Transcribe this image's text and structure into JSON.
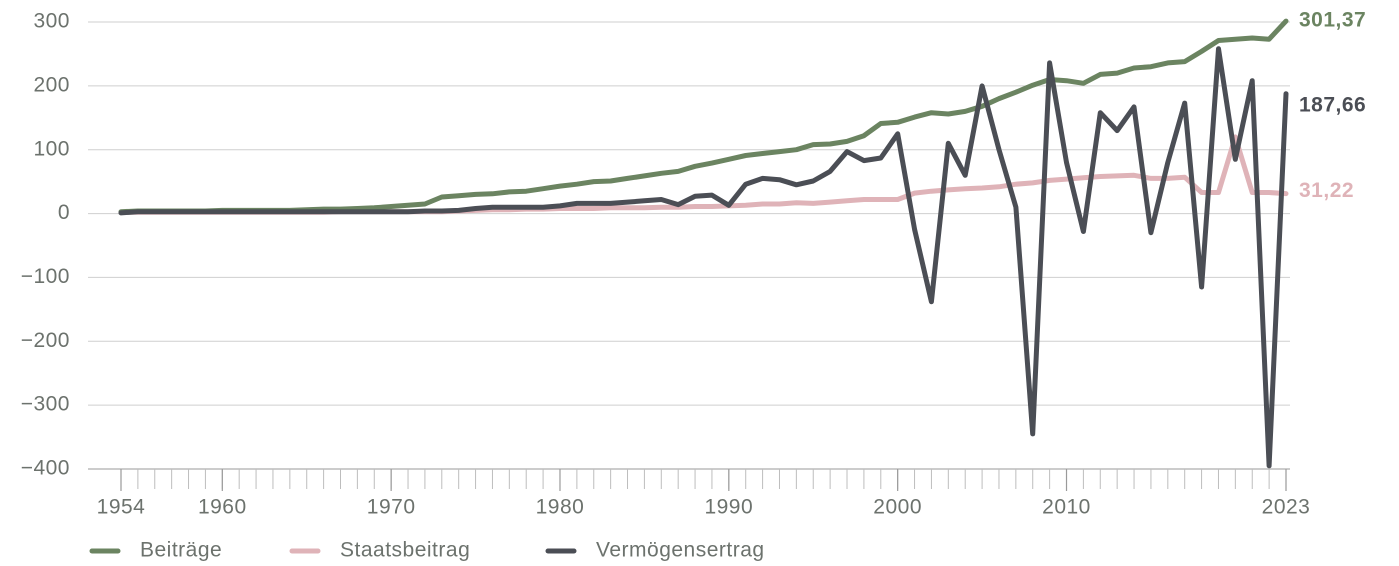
{
  "chart_data": {
    "type": "line",
    "x": [
      1954,
      1955,
      1956,
      1957,
      1958,
      1959,
      1960,
      1961,
      1962,
      1963,
      1964,
      1965,
      1966,
      1967,
      1968,
      1969,
      1970,
      1971,
      1972,
      1973,
      1974,
      1975,
      1976,
      1977,
      1978,
      1979,
      1980,
      1981,
      1982,
      1983,
      1984,
      1985,
      1986,
      1987,
      1988,
      1989,
      1990,
      1991,
      1992,
      1993,
      1994,
      1995,
      1996,
      1997,
      1998,
      1999,
      2000,
      2001,
      2002,
      2003,
      2004,
      2005,
      2006,
      2007,
      2008,
      2009,
      2010,
      2011,
      2012,
      2013,
      2014,
      2015,
      2016,
      2017,
      2018,
      2019,
      2020,
      2021,
      2022,
      2023
    ],
    "series": [
      {
        "name": "Beiträge",
        "color": "#6b8461",
        "values": [
          3,
          4,
          4,
          4,
          4,
          4,
          5,
          5,
          5,
          5,
          5,
          6,
          7,
          7,
          8,
          9,
          11,
          13,
          15,
          26,
          28,
          30,
          31,
          34,
          35,
          39,
          43,
          46,
          50,
          51,
          55,
          59,
          63,
          66,
          74,
          79,
          85,
          91,
          94,
          97,
          100,
          108,
          109,
          113,
          122,
          141,
          143,
          151,
          158,
          156,
          160,
          168,
          180,
          190,
          201,
          210,
          208,
          204,
          218,
          220,
          228,
          230,
          236,
          238,
          254,
          271,
          273,
          275,
          273,
          301.37
        ],
        "value_labels": [
          null,
          null,
          null,
          null,
          null,
          null,
          null,
          null,
          null,
          null,
          null,
          null,
          null,
          null,
          null,
          null,
          null,
          null,
          null,
          null,
          null,
          null,
          null,
          null,
          null,
          null,
          null,
          null,
          null,
          null,
          null,
          null,
          null,
          null,
          null,
          null,
          null,
          null,
          null,
          null,
          null,
          null,
          null,
          null,
          null,
          null,
          null,
          null,
          null,
          null,
          null,
          null,
          null,
          null,
          null,
          null,
          null,
          null,
          null,
          null,
          null,
          null,
          null,
          null,
          null,
          null,
          null,
          null,
          null,
          "301,37"
        ]
      },
      {
        "name": "Staatsbeitrag",
        "color": "#dfb3b8",
        "values": [
          2,
          2,
          2,
          2,
          2,
          2,
          2,
          2,
          2,
          2,
          2,
          2,
          2,
          3,
          3,
          3,
          3,
          3,
          3,
          3,
          4,
          5,
          6,
          6,
          7,
          7,
          8,
          8,
          8,
          9,
          9,
          9,
          10,
          10,
          11,
          11,
          12,
          13,
          15,
          15,
          17,
          16,
          18,
          20,
          22,
          22,
          22,
          32,
          35,
          37,
          39,
          40,
          42,
          46,
          48,
          52,
          54,
          56,
          58,
          59,
          60,
          55,
          55,
          57,
          33,
          33,
          120,
          33,
          33,
          31.22
        ],
        "value_labels": [
          null,
          null,
          null,
          null,
          null,
          null,
          null,
          null,
          null,
          null,
          null,
          null,
          null,
          null,
          null,
          null,
          null,
          null,
          null,
          null,
          null,
          null,
          null,
          null,
          null,
          null,
          null,
          null,
          null,
          null,
          null,
          null,
          null,
          null,
          null,
          null,
          null,
          null,
          null,
          null,
          null,
          null,
          null,
          null,
          null,
          null,
          null,
          null,
          null,
          null,
          null,
          null,
          null,
          null,
          null,
          null,
          null,
          null,
          null,
          null,
          null,
          null,
          null,
          null,
          null,
          null,
          null,
          null,
          null,
          "31,22"
        ]
      },
      {
        "name": "Vermögensertrag",
        "color": "#4b4e55",
        "values": [
          1,
          3,
          3,
          3,
          3,
          3,
          3,
          3,
          3,
          3,
          3,
          3,
          3,
          3,
          3,
          3,
          3,
          3,
          4,
          4,
          5,
          8,
          10,
          10,
          10,
          10,
          12,
          16,
          16,
          16,
          18,
          20,
          22,
          14,
          27,
          29,
          13,
          46,
          55,
          53,
          45,
          51,
          66,
          97,
          83,
          87,
          125,
          -25,
          -138,
          110,
          60,
          200,
          100,
          10,
          -345,
          236,
          80,
          -28,
          158,
          130,
          167,
          -30,
          80,
          173,
          -115,
          258,
          85,
          208,
          -395,
          187.66
        ],
        "value_labels": [
          null,
          null,
          null,
          null,
          null,
          null,
          null,
          null,
          null,
          null,
          null,
          null,
          null,
          null,
          null,
          null,
          null,
          null,
          null,
          null,
          null,
          null,
          null,
          null,
          null,
          null,
          null,
          null,
          null,
          null,
          null,
          null,
          null,
          null,
          null,
          null,
          null,
          null,
          null,
          null,
          null,
          null,
          null,
          null,
          null,
          null,
          null,
          null,
          null,
          null,
          null,
          null,
          null,
          null,
          null,
          null,
          null,
          null,
          null,
          null,
          null,
          null,
          null,
          null,
          null,
          null,
          null,
          null,
          null,
          "187,66"
        ]
      }
    ],
    "xlim": [
      1954,
      2023
    ],
    "xticks": [
      1954,
      1960,
      1970,
      1980,
      1990,
      2000,
      2010,
      2023
    ],
    "ylim": [
      -400,
      300
    ],
    "yticks": [
      {
        "value": -400,
        "label": "−400"
      },
      {
        "value": -300,
        "label": "−300"
      },
      {
        "value": -200,
        "label": "−200"
      },
      {
        "value": -100,
        "label": "−100"
      },
      0,
      100,
      200,
      300
    ],
    "grid": true,
    "legend": "bottom"
  }
}
